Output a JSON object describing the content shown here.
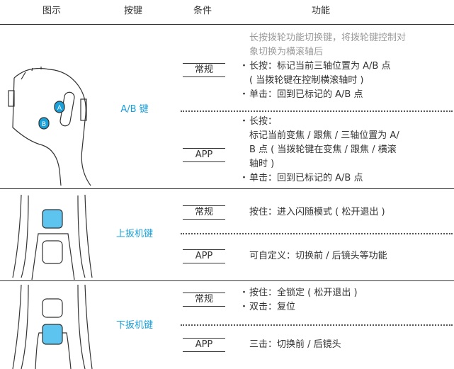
{
  "header": [
    "图示",
    "按键",
    "条件",
    "功能"
  ],
  "rows": [
    {
      "key": "A/B 键",
      "conditions": [
        {
          "label": "常规",
          "items": [
            {
              "color": "#9a9a9a",
              "lines": [
                "长按拨轮功能切换键，将拨轮键控制对",
                "象切换为横滚轴后"
              ]
            },
            {
              "bullet": "・",
              "lines": [
                "长按：标记当前三轴位置为 A/B 点",
                "( 当拨轮键在控制横滚轴时 )"
              ]
            },
            {
              "bullet": "・",
              "lines": [
                "单击：回到已标记的 A/B 点"
              ]
            }
          ]
        },
        {
          "label": "APP",
          "items": [
            {
              "bullet": "・",
              "lines": [
                "长按：",
                "标记当前变焦 / 跟焦 / 三轴位置为 A/",
                "B 点 ( 当拨轮键在变焦 / 跟焦 / 横滚",
                "轴时 )"
              ]
            },
            {
              "bullet": "・",
              "lines": [
                "单击：回到已标记的 A/B 点"
              ]
            }
          ]
        }
      ]
    },
    {
      "key": "上扳机键",
      "conditions": [
        {
          "label": "常规",
          "items": [
            {
              "lines": [
                "按住：进入闪随模式 ( 松开退出 )"
              ]
            }
          ]
        },
        {
          "label": "APP",
          "items": [
            {
              "lines": [
                "可自定义：切换前 / 后镜头等功能"
              ]
            }
          ]
        }
      ]
    },
    {
      "key": "下扳机键",
      "conditions": [
        {
          "label": "常规",
          "items": [
            {
              "bullet": "・",
              "lines": [
                "按住：全锁定 ( 松开退出 )"
              ]
            },
            {
              "bullet": "・",
              "lines": [
                "双击：复位"
              ]
            }
          ]
        },
        {
          "label": "APP",
          "items": [
            {
              "lines": [
                "三击：切换前 / 后镜头"
              ]
            }
          ]
        }
      ]
    }
  ],
  "figure_labels": [
    "A",
    "B"
  ]
}
